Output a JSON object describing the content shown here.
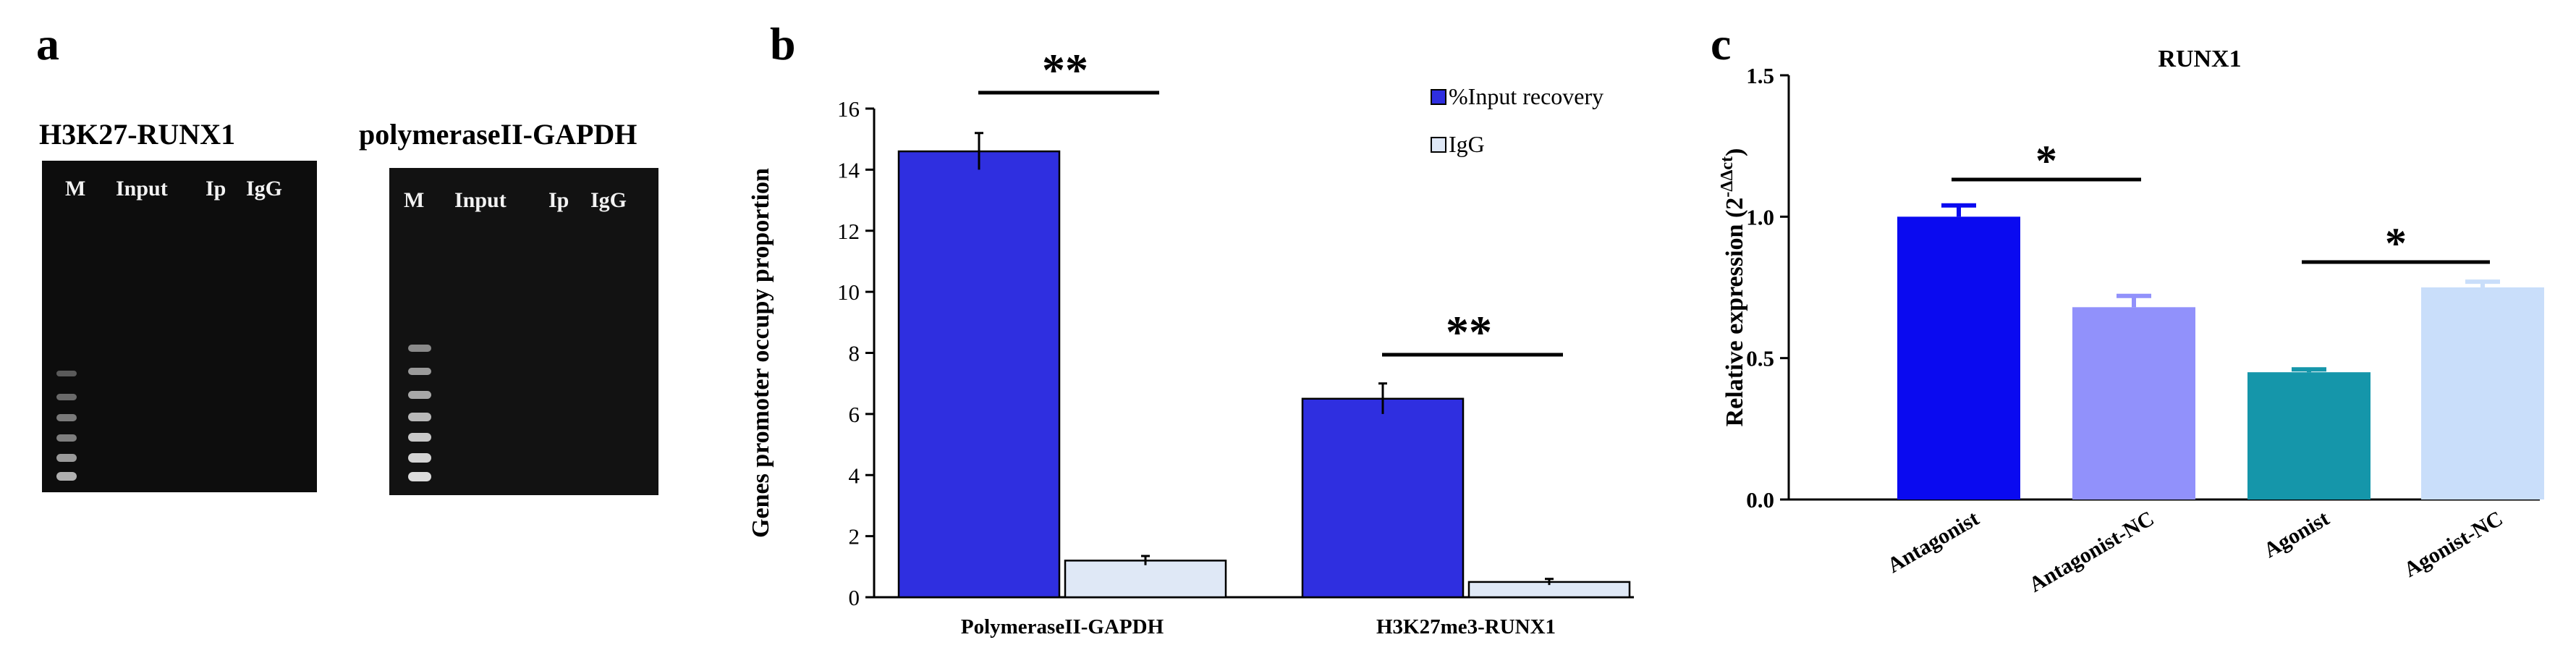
{
  "panel_a": {
    "letter": "a",
    "gels": [
      {
        "title": "H3K27-RUNX1",
        "lanes": [
          "M",
          "Input",
          "Ip",
          "IgG"
        ]
      },
      {
        "title": "polymeraseII-GAPDH",
        "lanes": [
          "M",
          "Input",
          "Ip",
          "IgG"
        ]
      }
    ]
  },
  "panel_b": {
    "letter": "b"
  },
  "panel_c": {
    "letter": "c"
  },
  "chart_data": [
    {
      "type": "bar",
      "panel": "b",
      "title": "",
      "xlabel": "",
      "ylabel": "Genes promoter occupy proportion",
      "categories": [
        "PolymeraseII-GAPDH",
        "H3K27me3-RUNX1"
      ],
      "series": [
        {
          "name": "%Input recovery",
          "values": [
            14.6,
            6.5
          ],
          "errors": [
            0.6,
            0.5
          ],
          "color": "#2f2fe0"
        },
        {
          "name": "IgG",
          "values": [
            1.2,
            0.5
          ],
          "errors": [
            0.15,
            0.1
          ],
          "color": "#dfe8f6"
        }
      ],
      "ylim": [
        0,
        16
      ],
      "yticks": [
        "0",
        "2",
        "4",
        "6",
        "8",
        "10",
        "12",
        "14",
        "16"
      ],
      "significance": [
        "**",
        "**"
      ],
      "legend": "top-right"
    },
    {
      "type": "bar",
      "panel": "c",
      "title": "RUNX1",
      "xlabel": "",
      "ylabel_main": "Relative expression (2",
      "ylabel_sup": "-ΔΔct",
      "ylabel_end": ")",
      "categories": [
        "Antagonist",
        "Antagonist-NC",
        "Agonist",
        "Agonist-NC"
      ],
      "values": [
        1.0,
        0.68,
        0.45,
        0.75
      ],
      "errors": [
        0.04,
        0.04,
        0.01,
        0.02
      ],
      "colors": [
        "#0a0af0",
        "#9191fb",
        "#1596aa",
        "#c9defa"
      ],
      "ylim": [
        0,
        1.5
      ],
      "yticks": [
        "0.0",
        "0.5",
        "1.0",
        "1.5"
      ],
      "significance": [
        {
          "label": "*",
          "pair": [
            0,
            1
          ]
        },
        {
          "label": "*",
          "pair": [
            2,
            3
          ]
        }
      ]
    }
  ]
}
